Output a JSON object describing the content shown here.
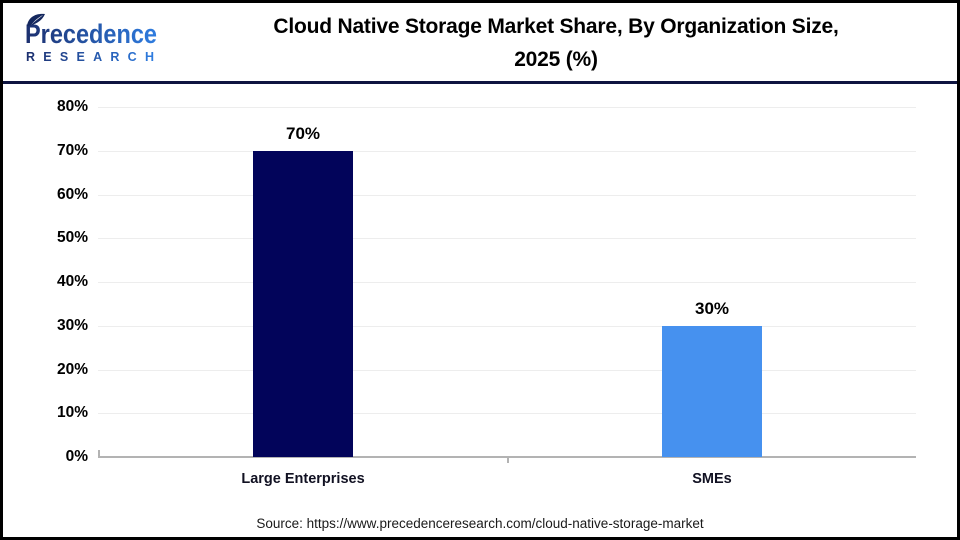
{
  "header": {
    "logo": {
      "line1": "Precedence",
      "line2": "RESEARCH"
    },
    "title_line1": "Cloud Native Storage Market Share, By Organization Size,",
    "title_line2": "2025 (%)"
  },
  "chart_data": {
    "type": "bar",
    "title": "Cloud Native Storage Market Share, By Organization Size, 2025 (%)",
    "categories": [
      "Large Enterprises",
      "SMEs"
    ],
    "values": [
      70,
      30
    ],
    "value_labels": [
      "70%",
      "30%"
    ],
    "bar_colors": [
      "#02045a",
      "#4691ef"
    ],
    "xlabel": "",
    "ylabel": "",
    "ylim": [
      0,
      80
    ],
    "ytick_step": 10,
    "ytick_labels": [
      "0%",
      "10%",
      "20%",
      "30%",
      "40%",
      "50%",
      "60%",
      "70%",
      "80%"
    ],
    "grid": true,
    "legend": false
  },
  "footer": {
    "source": "Source: https://www.precedenceresearch.com/cloud-native-storage-market"
  },
  "colors": {
    "bar_large_enterprises": "#02045a",
    "bar_smes": "#4691ef",
    "gridline": "#ededed",
    "axis": "#b3b3b3",
    "header_divider": "#0e1440",
    "outer_border": "#000000",
    "logo_gradient_start": "#1c2f6e",
    "logo_gradient_end": "#2e7ce0"
  }
}
